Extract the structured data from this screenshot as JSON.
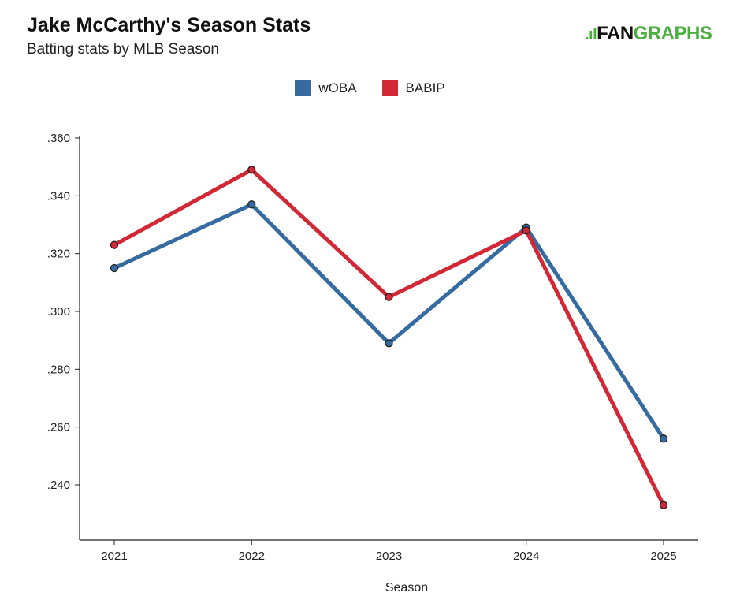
{
  "title": "Jake McCarthy's Season Stats",
  "subtitle": "Batting stats by MLB Season",
  "logo": {
    "prefix": "FAN",
    "suffix": "GRAPHS"
  },
  "chart_data": {
    "type": "line",
    "title": "Jake McCarthy's Season Stats",
    "subtitle": "Batting stats by MLB Season",
    "xlabel": "Season",
    "ylabel": "",
    "x": [
      "2021",
      "2022",
      "2023",
      "2024",
      "2025"
    ],
    "ylim": [
      0.221,
      0.36
    ],
    "yticks": [
      0.24,
      0.26,
      0.28,
      0.3,
      0.32,
      0.34,
      0.36
    ],
    "ytick_labels": [
      ".240",
      ".260",
      ".280",
      ".300",
      ".320",
      ".340",
      ".360"
    ],
    "grid": false,
    "legend_position": "top-center",
    "series": [
      {
        "name": "wOBA",
        "color": "#356ba1",
        "values": [
          0.315,
          0.337,
          0.289,
          0.329,
          0.256
        ]
      },
      {
        "name": "BABIP",
        "color": "#d22735",
        "values": [
          0.323,
          0.349,
          0.305,
          0.328,
          0.233
        ]
      }
    ]
  }
}
